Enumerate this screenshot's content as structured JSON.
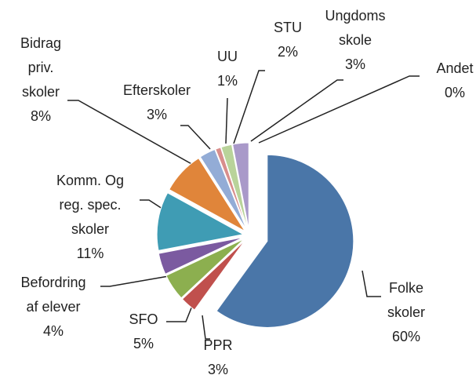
{
  "chart_data": {
    "type": "pie",
    "categories": [
      "Folke\nskoler",
      "PPR",
      "SFO",
      "Befordring\naf elever",
      "Komm. Og\nreg. spec.\nskoler",
      "Bidrag\npriv.\nskoler",
      "Efterskoler",
      "UU",
      "STU",
      "Ungdoms\nskole",
      "Andet"
    ],
    "values": [
      60,
      3,
      5,
      4,
      11,
      8,
      3,
      1,
      2,
      3,
      0
    ],
    "value_labels": [
      "60%",
      "3%",
      "5%",
      "4%",
      "11%",
      "8%",
      "3%",
      "1%",
      "2%",
      "3%",
      "0%"
    ],
    "colors": [
      "#4a76a8",
      "#c0504d",
      "#8caf4f",
      "#7b5aa0",
      "#3f9cb4",
      "#e0853a",
      "#93acd6",
      "#d88e8c",
      "#b9d39a",
      "#a999c9",
      "#8fd0e0"
    ]
  }
}
